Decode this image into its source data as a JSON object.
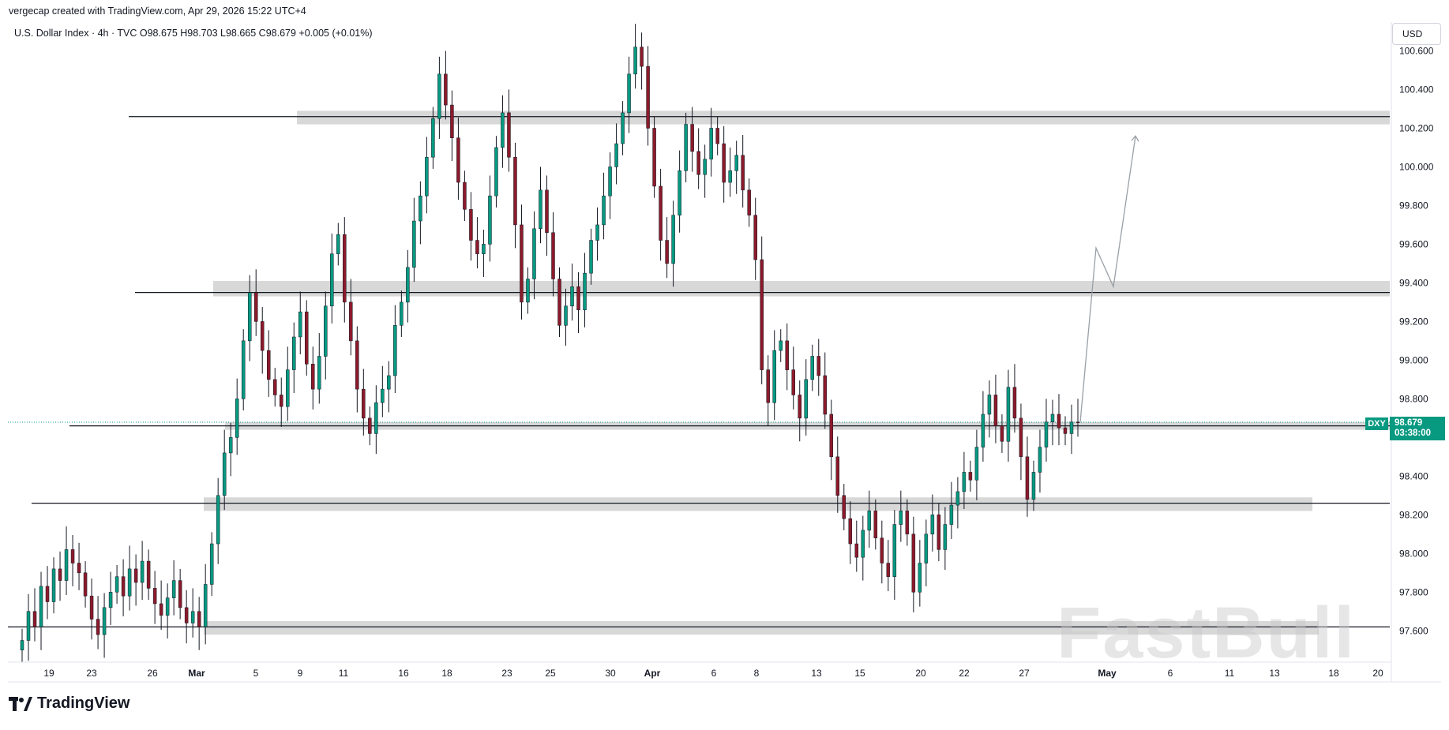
{
  "header": {
    "credit": "vergecap created with TradingView.com, Apr 29, 2026 15:22 UTC+4"
  },
  "legend": {
    "text": "U.S. Dollar Index · 4h · TVC  O98.675  H98.703  L98.665  C98.679  +0.005 (+0.01%)"
  },
  "currency": "USD",
  "price_tag": {
    "symbol": "DXY",
    "price": "98.679",
    "countdown": "03:38:00",
    "color": "#089981"
  },
  "brand": {
    "name": "TradingView"
  },
  "watermark": {
    "text": "FastBull"
  },
  "colors": {
    "up": "#089981",
    "down": "#8b1a2b",
    "wick": "#131722",
    "zone": "#d1d1d1",
    "level_line": "#131722",
    "projection": "#9aa0a6"
  },
  "chart_data": {
    "type": "candlestick",
    "symbol": "U.S. Dollar Index",
    "timeframe": "4h",
    "ylim": [
      97.45,
      100.7
    ],
    "y_ticks": [
      100.6,
      100.4,
      100.2,
      100.0,
      99.8,
      99.6,
      99.4,
      99.2,
      99.0,
      98.8,
      98.4,
      98.2,
      98.0,
      97.8,
      97.6
    ],
    "y_tick_labels": [
      "100.600",
      "100.400",
      "100.200",
      "100.000",
      "99.800",
      "99.600",
      "99.400",
      "99.200",
      "99.000",
      "98.800",
      "98.400",
      "98.200",
      "98.000",
      "97.800",
      "97.600"
    ],
    "x_tick_labels": [
      {
        "label": "19",
        "bold": false
      },
      {
        "label": "23",
        "bold": false
      },
      {
        "label": "26",
        "bold": false
      },
      {
        "label": "Mar",
        "bold": true
      },
      {
        "label": "5",
        "bold": false
      },
      {
        "label": "9",
        "bold": false
      },
      {
        "label": "11",
        "bold": false
      },
      {
        "label": "16",
        "bold": false
      },
      {
        "label": "18",
        "bold": false
      },
      {
        "label": "23",
        "bold": false
      },
      {
        "label": "25",
        "bold": false
      },
      {
        "label": "30",
        "bold": false
      },
      {
        "label": "Apr",
        "bold": true
      },
      {
        "label": "6",
        "bold": false
      },
      {
        "label": "8",
        "bold": false
      },
      {
        "label": "13",
        "bold": false
      },
      {
        "label": "15",
        "bold": false
      },
      {
        "label": "20",
        "bold": false
      },
      {
        "label": "22",
        "bold": false
      },
      {
        "label": "27",
        "bold": false
      },
      {
        "label": "May",
        "bold": true
      },
      {
        "label": "6",
        "bold": false
      },
      {
        "label": "11",
        "bold": false
      },
      {
        "label": "13",
        "bold": false
      },
      {
        "label": "18",
        "bold": false
      },
      {
        "label": "20",
        "bold": false
      }
    ],
    "zones": [
      {
        "low": 100.22,
        "high": 100.29,
        "level": 100.26
      },
      {
        "low": 99.33,
        "high": 99.41,
        "level": 99.35
      },
      {
        "low": 98.64,
        "high": 98.68,
        "level": 98.66
      },
      {
        "low": 98.22,
        "high": 98.29,
        "level": 98.26
      },
      {
        "low": 97.58,
        "high": 97.65,
        "level": 97.62
      }
    ],
    "last_price": 98.679,
    "projection": [
      98.68,
      99.58,
      99.38,
      100.16
    ],
    "series_close": [
      97.55,
      97.7,
      97.62,
      97.83,
      97.75,
      97.92,
      97.86,
      98.02,
      97.95,
      97.9,
      97.78,
      97.66,
      97.58,
      97.72,
      97.8,
      97.88,
      97.78,
      97.92,
      97.85,
      97.96,
      97.82,
      97.74,
      97.68,
      97.77,
      97.86,
      97.72,
      97.64,
      97.7,
      97.62,
      97.84,
      98.05,
      98.3,
      98.52,
      98.6,
      98.8,
      99.1,
      99.35,
      99.2,
      99.05,
      98.9,
      98.82,
      98.76,
      98.95,
      99.12,
      99.25,
      98.98,
      98.85,
      99.02,
      99.28,
      99.55,
      99.65,
      99.3,
      99.1,
      98.85,
      98.7,
      98.62,
      98.78,
      98.85,
      98.92,
      99.18,
      99.3,
      99.48,
      99.72,
      99.85,
      100.05,
      100.25,
      100.48,
      100.32,
      100.15,
      99.92,
      99.78,
      99.62,
      99.55,
      99.6,
      99.85,
      100.1,
      100.28,
      100.05,
      99.7,
      99.3,
      99.42,
      99.68,
      99.88,
      99.66,
      99.42,
      99.18,
      99.28,
      99.38,
      99.26,
      99.45,
      99.62,
      99.7,
      99.85,
      100.0,
      100.12,
      100.28,
      100.48,
      100.62,
      100.52,
      100.2,
      99.9,
      99.62,
      99.5,
      99.75,
      99.98,
      100.22,
      100.08,
      99.96,
      100.04,
      100.2,
      100.12,
      99.92,
      99.98,
      100.06,
      99.88,
      99.75,
      99.52,
      98.95,
      98.78,
      99.05,
      99.1,
      98.95,
      98.82,
      98.7,
      98.9,
      99.02,
      98.92,
      98.72,
      98.5,
      98.3,
      98.18,
      98.05,
      97.98,
      98.12,
      98.22,
      98.08,
      97.95,
      97.88,
      98.15,
      98.22,
      98.1,
      97.8,
      97.95,
      98.1,
      98.2,
      98.02,
      98.15,
      98.25,
      98.32,
      98.42,
      98.38,
      98.55,
      98.72,
      98.82,
      98.66,
      98.58,
      98.86,
      98.7,
      98.5,
      98.28,
      98.42,
      98.55,
      98.68,
      98.72,
      98.65,
      98.62,
      98.68,
      98.679
    ]
  }
}
